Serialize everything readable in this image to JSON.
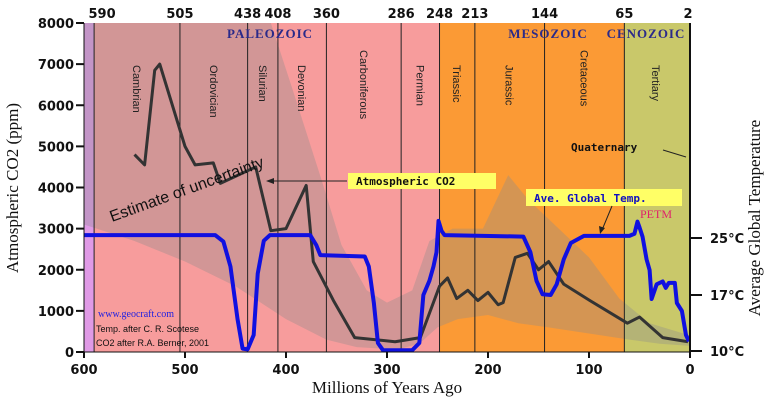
{
  "chart_data": {
    "type": "line",
    "xlabel": "Millions of Years Ago",
    "ylabel": "Atmospheric CO2 (ppm)",
    "y2label": "Average Global Temperature",
    "xlim": [
      600,
      0
    ],
    "ylim": [
      0,
      8000
    ],
    "x_ticks": [
      600,
      500,
      400,
      300,
      200,
      100,
      0
    ],
    "y_ticks": [
      0,
      1000,
      2000,
      3000,
      4000,
      5000,
      6000,
      7000,
      8000
    ],
    "y2_ticks": [
      {
        "value": 25,
        "label": "25°C"
      },
      {
        "value": 17,
        "label": "17°C"
      },
      {
        "value": 10,
        "label": "10°C"
      }
    ],
    "top_ticks": [
      "590",
      "505",
      "438",
      "408",
      "360",
      "286",
      "248",
      "213",
      "144",
      "65",
      "2"
    ],
    "top_tick_values": [
      590,
      505,
      438,
      408,
      360,
      286,
      248,
      213,
      144,
      65,
      2
    ],
    "eras": [
      {
        "name": "PALEOZOIC",
        "from": 590,
        "to": 248,
        "color": "#f79c9c"
      },
      {
        "name": "MESOZOIC",
        "from": 248,
        "to": 65,
        "color": "#fb9a35"
      },
      {
        "name": "CENOZOIC",
        "from": 65,
        "to": 0,
        "color": "#c9c86a"
      }
    ],
    "precambrian_color": "#e09ae6",
    "periods": [
      {
        "name": "Cambrian",
        "from": 590,
        "to": 505
      },
      {
        "name": "Ordovician",
        "from": 505,
        "to": 438
      },
      {
        "name": "Silurian",
        "from": 438,
        "to": 408
      },
      {
        "name": "Devonian",
        "from": 408,
        "to": 360
      },
      {
        "name": "Carboniferous",
        "from": 360,
        "to": 286
      },
      {
        "name": "Permian",
        "from": 286,
        "to": 248
      },
      {
        "name": "Triassic",
        "from": 248,
        "to": 213
      },
      {
        "name": "Jurassic",
        "from": 213,
        "to": 144
      },
      {
        "name": "Cretaceous",
        "from": 144,
        "to": 65
      },
      {
        "name": "Tertiary",
        "from": 65,
        "to": 2
      }
    ],
    "series": [
      {
        "name": "Atmospheric CO2",
        "unit": "ppm",
        "color": "#333333",
        "points": [
          [
            550,
            4800
          ],
          [
            540,
            4550
          ],
          [
            530,
            6850
          ],
          [
            525,
            7000
          ],
          [
            500,
            5000
          ],
          [
            490,
            4550
          ],
          [
            472,
            4600
          ],
          [
            465,
            4100
          ],
          [
            430,
            4500
          ],
          [
            415,
            2950
          ],
          [
            400,
            3000
          ],
          [
            380,
            4050
          ],
          [
            373,
            2200
          ],
          [
            353,
            1250
          ],
          [
            332,
            350
          ],
          [
            292,
            250
          ],
          [
            267,
            350
          ],
          [
            248,
            1600
          ],
          [
            240,
            1800
          ],
          [
            231,
            1300
          ],
          [
            220,
            1500
          ],
          [
            210,
            1250
          ],
          [
            200,
            1450
          ],
          [
            190,
            1150
          ],
          [
            185,
            1200
          ],
          [
            173,
            2300
          ],
          [
            161,
            2400
          ],
          [
            150,
            2000
          ],
          [
            140,
            2200
          ],
          [
            125,
            1650
          ],
          [
            99,
            1250
          ],
          [
            62,
            700
          ],
          [
            50,
            850
          ],
          [
            27,
            350
          ],
          [
            2,
            250
          ]
        ]
      },
      {
        "name": "Ave. Global Temp.",
        "unit": "°C",
        "color": "#1010e0",
        "points": [
          [
            600,
            25.4
          ],
          [
            470,
            25.4
          ],
          [
            462,
            24.5
          ],
          [
            455,
            21
          ],
          [
            448,
            14
          ],
          [
            443,
            10.3
          ],
          [
            438,
            10.2
          ],
          [
            432,
            12
          ],
          [
            428,
            20
          ],
          [
            422,
            24.6
          ],
          [
            416,
            25.4
          ],
          [
            376,
            25.4
          ],
          [
            370,
            24
          ],
          [
            366,
            22.6
          ],
          [
            322,
            22.4
          ],
          [
            318,
            21
          ],
          [
            313,
            16
          ],
          [
            309,
            11
          ],
          [
            304,
            10.1
          ],
          [
            275,
            10.1
          ],
          [
            268,
            11
          ],
          [
            264,
            17
          ],
          [
            258,
            19
          ],
          [
            254,
            21
          ],
          [
            251,
            23
          ],
          [
            249,
            27.4
          ],
          [
            246,
            26
          ],
          [
            243,
            25.4
          ],
          [
            165,
            25.2
          ],
          [
            158,
            23
          ],
          [
            152,
            19
          ],
          [
            146,
            17.1
          ],
          [
            138,
            17
          ],
          [
            132,
            18.5
          ],
          [
            125,
            22
          ],
          [
            118,
            24.3
          ],
          [
            105,
            25.3
          ],
          [
            60,
            25.3
          ],
          [
            55,
            25.6
          ],
          [
            52,
            27.3
          ],
          [
            50,
            26.5
          ],
          [
            47,
            25.2
          ],
          [
            43,
            22
          ],
          [
            40,
            20.5
          ],
          [
            38,
            16.5
          ],
          [
            33,
            18.5
          ],
          [
            27,
            18.9
          ],
          [
            24,
            18
          ],
          [
            21,
            18.7
          ],
          [
            15,
            18.7
          ],
          [
            13,
            16
          ],
          [
            8,
            15
          ],
          [
            4,
            12
          ],
          [
            1,
            11.2
          ]
        ]
      }
    ],
    "uncertainty_band": {
      "label": "Estimate of uncertainty",
      "color": "#8c8c8c",
      "upper": [
        [
          600,
          8000
        ],
        [
          415,
          8000
        ],
        [
          395,
          6500
        ],
        [
          365,
          4200
        ],
        [
          345,
          2600
        ],
        [
          320,
          1500
        ],
        [
          300,
          1200
        ],
        [
          275,
          1500
        ],
        [
          258,
          2700
        ],
        [
          235,
          3000
        ],
        [
          205,
          3000
        ],
        [
          180,
          4300
        ],
        [
          160,
          3700
        ],
        [
          130,
          3000
        ],
        [
          100,
          2300
        ],
        [
          70,
          1300
        ],
        [
          40,
          700
        ],
        [
          0,
          400
        ]
      ],
      "lower": [
        [
          600,
          3100
        ],
        [
          550,
          2700
        ],
        [
          500,
          2200
        ],
        [
          450,
          1600
        ],
        [
          400,
          800
        ],
        [
          360,
          300
        ],
        [
          330,
          120
        ],
        [
          290,
          60
        ],
        [
          268,
          200
        ],
        [
          250,
          600
        ],
        [
          230,
          800
        ],
        [
          200,
          900
        ],
        [
          170,
          700
        ],
        [
          140,
          600
        ],
        [
          100,
          450
        ],
        [
          60,
          300
        ],
        [
          30,
          200
        ],
        [
          0,
          150
        ]
      ]
    },
    "annotations": {
      "co2_label": "Atmospheric CO2",
      "temp_label": "Ave. Global Temp.",
      "quaternary": "Quaternary",
      "petm": "PETM",
      "website": "www.geocraft.com",
      "credit_temp": "Temp. after C. R. Scotese",
      "credit_co2": "CO2 after R.A. Berner, 2001"
    }
  }
}
